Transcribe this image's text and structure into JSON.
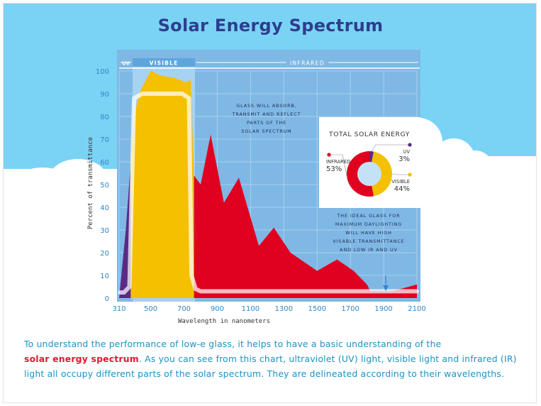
{
  "title": "Solar Energy Spectrum",
  "colors": {
    "uv": "#5a2b86",
    "visible": "#f4c000",
    "infrared": "#e0001f",
    "ideal_glass": "#ffffff",
    "title": "#2d3e8e",
    "caption": "#1a93c6",
    "caption_highlight": "#e2172e"
  },
  "chart_data": {
    "type": "area",
    "title": "",
    "xlabel": "Wavelength in nanometers",
    "ylabel": "Percent of transmittance",
    "xlim": [
      310,
      2100
    ],
    "ylim": [
      0,
      100
    ],
    "x_ticks": [
      "310",
      "500",
      "700",
      "900",
      "1100",
      "1300",
      "1500",
      "1700",
      "1900",
      "2100"
    ],
    "y_ticks": [
      "0",
      "10",
      "20",
      "30",
      "40",
      "50",
      "60",
      "70",
      "80",
      "90",
      "100"
    ],
    "grid": true,
    "bands": [
      {
        "label": "UV",
        "from": 310,
        "to": 380
      },
      {
        "label": "VISIBLE",
        "from": 380,
        "to": 760
      },
      {
        "label": "INFRARED",
        "from": 760,
        "to": 2100
      }
    ],
    "series": [
      {
        "key": "uv",
        "x": [
          310,
          315,
          350,
          380,
          380,
          310
        ],
        "y": [
          0,
          4,
          30,
          60,
          0,
          0
        ]
      },
      {
        "key": "visible",
        "x": [
          380,
          400,
          430,
          470,
          500,
          560,
          640,
          710,
          740,
          760,
          760,
          380
        ],
        "y": [
          60,
          80,
          90,
          96,
          100,
          98,
          97,
          95,
          96,
          54,
          0,
          0
        ]
      },
      {
        "key": "infrared",
        "x": [
          760,
          800,
          860,
          940,
          1030,
          1150,
          1240,
          1340,
          1500,
          1620,
          1720,
          1800,
          1820,
          1900,
          1950,
          2000,
          2050,
          2100,
          2100,
          760
        ],
        "y": [
          54,
          50,
          72,
          42,
          53,
          23,
          31,
          20,
          12,
          17,
          12,
          6,
          3,
          3,
          3,
          4,
          5,
          6,
          0,
          0
        ]
      },
      {
        "key": "ideal_glass",
        "x": [
          316,
          340,
          372,
          400,
          450,
          600,
          690,
          730,
          745,
          770,
          800,
          2100
        ],
        "y": [
          2.5,
          2.5,
          5,
          88,
          90,
          90,
          90,
          88,
          10,
          4,
          3,
          3
        ]
      }
    ],
    "annotations": [
      {
        "key": "absorb",
        "lines": [
          "GLASS WILL ABSORB,",
          "TRANSMIT AND REFLECT",
          "PARTS OF THE",
          "SOLAR SPECTRUM"
        ]
      },
      {
        "key": "ideal",
        "lines": [
          "THE IDEAL GLASS FOR",
          "MAXIMUM DAYLIGHTING",
          "WILL HAVE HIGH",
          "VISABLE TRANSMITTANCE",
          "AND LOW IR AND UV"
        ]
      }
    ],
    "pie": {
      "type": "pie",
      "title": "TOTAL SOLAR ENERGY",
      "slices": [
        {
          "label": "UV",
          "value": 3,
          "display": "3%",
          "key": "uv"
        },
        {
          "label": "VISIBLE",
          "value": 44,
          "display": "44%",
          "key": "visible"
        },
        {
          "label": "INFRARED",
          "value": 53,
          "display": "53%",
          "key": "infrared"
        }
      ]
    }
  },
  "caption": {
    "part1": "To understand the performance of low-e glass, it helps to have a basic understanding of the",
    "highlight": "solar energy spectrum",
    "part2": ". As you can see from this chart, ultraviolet (UV) light, visible light and infrared (IR) light all occupy different parts of the solar spectrum. They are delineated according to their wavelengths."
  }
}
